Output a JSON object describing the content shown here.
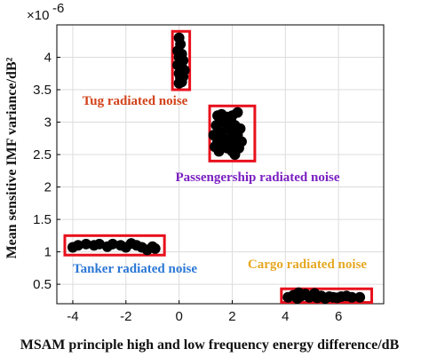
{
  "chart_data": {
    "type": "scatter",
    "xlabel": "MSAM principle high and low frequency energy difference/dB",
    "ylabel": "Mean sensitive IMF variance/dB²",
    "y_multiplier": "×10",
    "y_exponent": "-6",
    "xlim": [
      -4.6,
      7.7
    ],
    "ylim": [
      0.2,
      4.5
    ],
    "x_ticks": [
      -4,
      -2,
      0,
      2,
      4,
      6
    ],
    "x_tick_labels": [
      "-4",
      "-2",
      "0",
      "2",
      "4",
      "6"
    ],
    "y_ticks": [
      0.5,
      1,
      1.5,
      2,
      2.5,
      3,
      3.5,
      4
    ],
    "y_tick_labels": [
      "0.5",
      "1",
      "1.5",
      "2",
      "2.5",
      "3",
      "3.5",
      "4"
    ],
    "grid": true,
    "marker_color": "#000000",
    "box_color": "#e8101c",
    "groups": [
      {
        "label": "Tug radiated noise",
        "label_color": "#d2421a",
        "box": {
          "x": [
            -0.25,
            0.4
          ],
          "y": [
            3.5,
            4.4
          ]
        },
        "points": [
          [
            0.0,
            4.3
          ],
          [
            0.05,
            4.2
          ],
          [
            -0.05,
            4.1
          ],
          [
            0.1,
            4.05
          ],
          [
            0.0,
            4.0
          ],
          [
            0.15,
            3.95
          ],
          [
            0.05,
            3.92
          ],
          [
            -0.05,
            3.88
          ],
          [
            0.1,
            3.85
          ],
          [
            0.2,
            3.8
          ],
          [
            0.0,
            3.75
          ],
          [
            0.15,
            3.7
          ],
          [
            0.05,
            3.68
          ],
          [
            0.1,
            3.62
          ],
          [
            0.0,
            3.6
          ]
        ]
      },
      {
        "label": "Passengership radiated noise",
        "label_color": "#7a1fc2",
        "box": {
          "x": [
            1.15,
            2.85
          ],
          "y": [
            2.4,
            3.25
          ]
        },
        "points": [
          [
            1.45,
            3.1
          ],
          [
            1.6,
            3.12
          ],
          [
            1.8,
            3.08
          ],
          [
            2.0,
            3.1
          ],
          [
            2.2,
            3.15
          ],
          [
            1.7,
            3.0
          ],
          [
            1.95,
            3.02
          ],
          [
            1.4,
            2.95
          ],
          [
            2.1,
            2.95
          ],
          [
            1.85,
            2.9
          ],
          [
            2.3,
            2.9
          ],
          [
            1.55,
            2.85
          ],
          [
            2.0,
            2.85
          ],
          [
            1.3,
            2.8
          ],
          [
            2.2,
            2.8
          ],
          [
            1.7,
            2.75
          ],
          [
            1.45,
            2.7
          ],
          [
            1.95,
            2.72
          ],
          [
            2.35,
            2.7
          ],
          [
            1.6,
            2.62
          ],
          [
            2.1,
            2.65
          ],
          [
            1.8,
            2.6
          ],
          [
            1.5,
            2.55
          ],
          [
            2.0,
            2.55
          ],
          [
            2.25,
            2.6
          ],
          [
            1.35,
            2.62
          ],
          [
            2.1,
            2.5
          ]
        ]
      },
      {
        "label": "Tanker radiated noise",
        "label_color": "#2b78d6",
        "box": {
          "x": [
            -4.3,
            -0.55
          ],
          "y": [
            0.95,
            1.25
          ]
        },
        "points": [
          [
            -4.0,
            1.07
          ],
          [
            -3.8,
            1.1
          ],
          [
            -3.5,
            1.12
          ],
          [
            -3.2,
            1.1
          ],
          [
            -3.0,
            1.12
          ],
          [
            -2.7,
            1.08
          ],
          [
            -2.5,
            1.12
          ],
          [
            -2.2,
            1.1
          ],
          [
            -2.0,
            1.07
          ],
          [
            -1.8,
            1.13
          ],
          [
            -1.6,
            1.1
          ],
          [
            -1.4,
            1.07
          ],
          [
            -1.2,
            1.03
          ],
          [
            -1.0,
            1.08
          ],
          [
            -0.9,
            1.05
          ]
        ]
      },
      {
        "label": "Cargo radiated noise",
        "label_color": "#e6a822",
        "box": {
          "x": [
            3.85,
            7.25
          ],
          "y": [
            0.22,
            0.43
          ]
        },
        "points": [
          [
            4.1,
            0.3
          ],
          [
            4.3,
            0.33
          ],
          [
            4.45,
            0.28
          ],
          [
            4.6,
            0.32
          ],
          [
            4.75,
            0.35
          ],
          [
            4.9,
            0.3
          ],
          [
            5.05,
            0.33
          ],
          [
            5.2,
            0.29
          ],
          [
            5.35,
            0.32
          ],
          [
            5.5,
            0.28
          ],
          [
            5.65,
            0.31
          ],
          [
            5.8,
            0.3
          ],
          [
            5.95,
            0.29
          ],
          [
            6.1,
            0.31
          ],
          [
            6.3,
            0.32
          ],
          [
            6.5,
            0.3
          ],
          [
            6.8,
            0.3
          ],
          [
            4.5,
            0.37
          ],
          [
            5.1,
            0.36
          ]
        ]
      }
    ]
  }
}
